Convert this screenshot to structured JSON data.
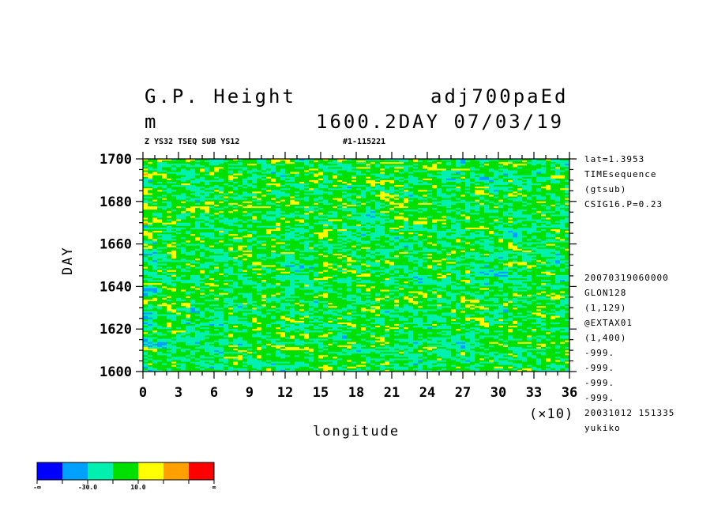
{
  "header": {
    "var_name": "G.P. Height",
    "var_id": "adj700paEd",
    "units": "m",
    "time_info": "1600.2DAY 07/03/19",
    "sub_left": "Z YS32 TSEQ SUB YS12",
    "sub_right": "#1-115221"
  },
  "side_info": [
    "lat=1.3953",
    "TIMEsequence",
    "(gtsub)",
    "CSIG16.P=0.23",
    "20070319060000",
    "GLON128",
    "(1,129)",
    "@EXTAX01",
    "(1,400)",
    "-999.",
    "-999.",
    "-999.",
    "-999.",
    "20031012 151335",
    "yukiko"
  ],
  "chart_data": {
    "type": "heatmap",
    "xlabel": "longitude",
    "x_multiplier_label": "(×10)",
    "ylabel": "DAY",
    "xlim": [
      0,
      36
    ],
    "ylim": [
      1600,
      1700
    ],
    "x_ticks": [
      "0",
      "3",
      "6",
      "9",
      "12",
      "15",
      "18",
      "21",
      "24",
      "27",
      "30",
      "33",
      "36"
    ],
    "y_ticks": [
      "1600",
      "1620",
      "1640",
      "1660",
      "1680",
      "1700"
    ],
    "colorbar": {
      "colors": [
        "#0000ff",
        "#00a0ff",
        "#00f0b0",
        "#00e000",
        "#ffff00",
        "#ffa000",
        "#ff0000"
      ],
      "labels": [
        "-∞",
        "-30.0",
        "10.0",
        "∞"
      ]
    }
  }
}
